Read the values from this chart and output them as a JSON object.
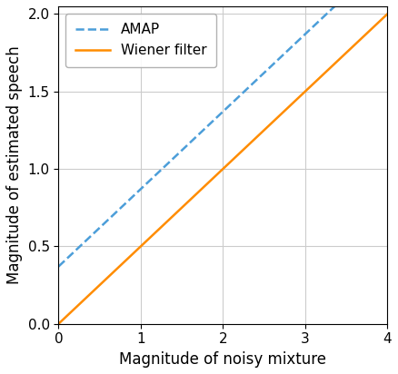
{
  "x_start": 0,
  "x_end": 4,
  "xlim": [
    0,
    4
  ],
  "ylim": [
    0,
    2.05
  ],
  "xlabel": "Magnitude of noisy mixture",
  "ylabel": "Magnitude of estimated speech",
  "amap_label": "AMAP",
  "wiener_label": "Wiener filter",
  "amap_color": "#4C9ED9",
  "wiener_color": "#FF8C00",
  "amap_slope": 0.5,
  "amap_intercept": 0.37,
  "wiener_slope": 0.5,
  "wiener_intercept": 0.0,
  "grid_color": "#cccccc",
  "yticks": [
    0.0,
    0.5,
    1.0,
    1.5,
    2.0
  ],
  "xticks": [
    0,
    1,
    2,
    3,
    4
  ],
  "linewidth": 1.8,
  "legend_fontsize": 11,
  "axis_fontsize": 12,
  "tick_fontsize": 11
}
